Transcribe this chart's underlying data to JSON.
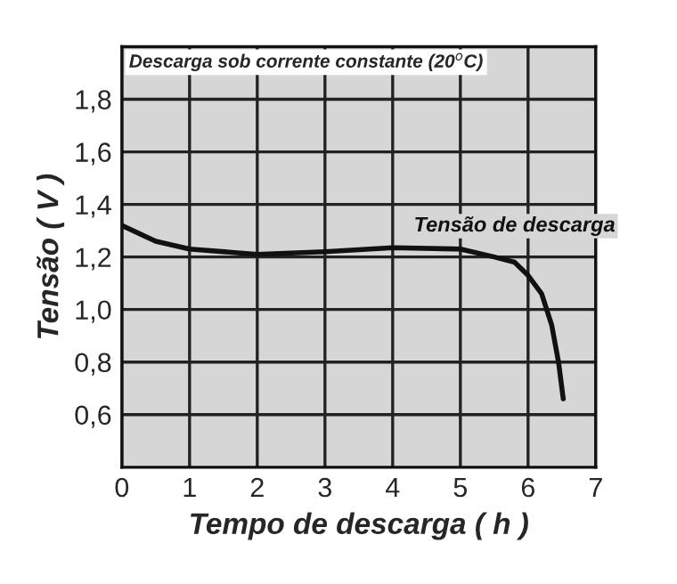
{
  "chart_data": {
    "type": "line",
    "xlabel": "Tempo de descarga ( h )",
    "ylabel": "Tensão ( V )",
    "annotations": [
      "Descarga sob corrente constante (20$^{o}$C)"
    ],
    "x": [
      0,
      0.5,
      1,
      2,
      3,
      4,
      5,
      5.5,
      5.8,
      6.0,
      6.2,
      6.35,
      6.45,
      6.52
    ],
    "series": [
      {
        "name": "Tensão de descarga",
        "color": "#111111",
        "values": [
          1.32,
          1.26,
          1.23,
          1.21,
          1.22,
          1.235,
          1.23,
          1.2,
          1.18,
          1.13,
          1.06,
          0.94,
          0.8,
          0.66
        ]
      }
    ],
    "xlim": [
      0,
      7
    ],
    "ylim": [
      0.4,
      2.0
    ],
    "xticks": [
      0,
      1,
      2,
      3,
      4,
      5,
      6,
      7
    ],
    "yticks": [
      {
        "value": 0.6,
        "label": "0,6"
      },
      {
        "value": 0.8,
        "label": "0,8"
      },
      {
        "value": 1.0,
        "label": "1,0"
      },
      {
        "value": 1.2,
        "label": "1,2"
      },
      {
        "value": 1.4,
        "label": "1,4"
      },
      {
        "value": 1.6,
        "label": "1,6"
      },
      {
        "value": 1.8,
        "label": "1,8"
      }
    ],
    "grid": true,
    "legend": false,
    "marker": "none",
    "line_style": "solid"
  }
}
